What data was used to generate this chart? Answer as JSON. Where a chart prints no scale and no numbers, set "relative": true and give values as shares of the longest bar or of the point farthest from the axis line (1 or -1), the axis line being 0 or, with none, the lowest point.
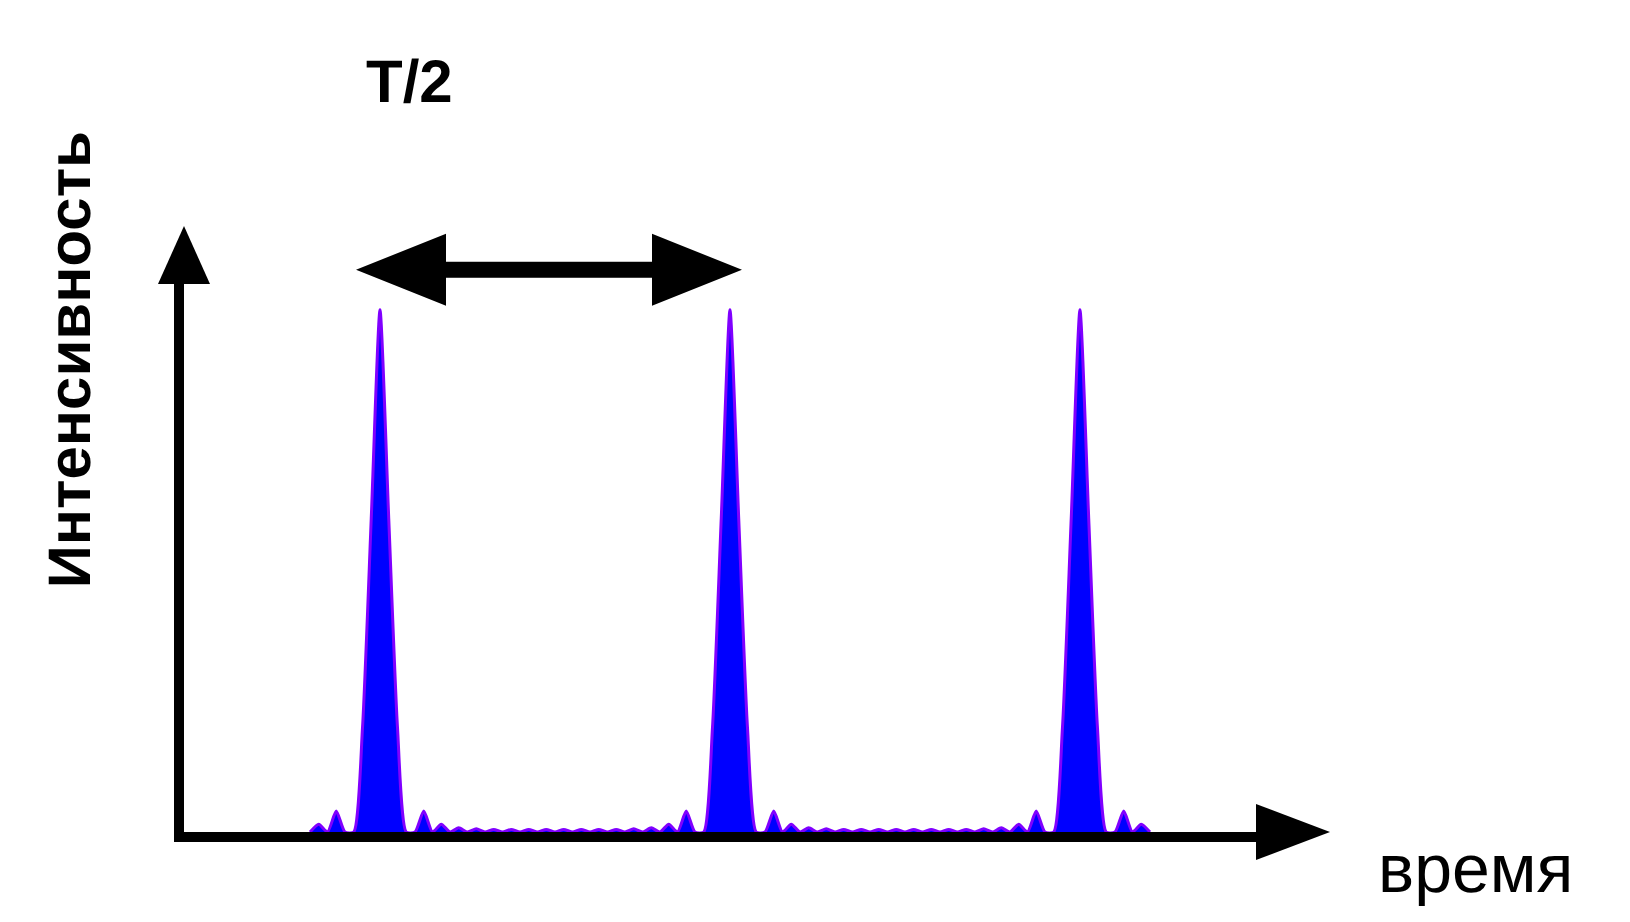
{
  "chart_data": {
    "type": "area",
    "xlabel": "время",
    "ylabel": "Интенсивность",
    "annotations": [
      "T/2"
    ],
    "categories": [
      null,
      null,
      null,
      null,
      null,
      null,
      null,
      null,
      null,
      null,
      null,
      null,
      null,
      null,
      null,
      null,
      null,
      null,
      null,
      null,
      null,
      null,
      null,
      null,
      null,
      null,
      null,
      null,
      null,
      null,
      null,
      null,
      null,
      null,
      null,
      null,
      null,
      null,
      null,
      null,
      null,
      null,
      null,
      null,
      null,
      null,
      null,
      null,
      null,
      null,
      null,
      null,
      null,
      null,
      null,
      null,
      null,
      null,
      null,
      null,
      null,
      null,
      null,
      null,
      null,
      null,
      null,
      null,
      null,
      null,
      null,
      null,
      null,
      null,
      null,
      null,
      null,
      null,
      null,
      null,
      null,
      null,
      null,
      null,
      null,
      null,
      null,
      null,
      null,
      null,
      null,
      null,
      null,
      null,
      null,
      null,
      null
    ],
    "series": [
      {
        "color": "#0000ff",
        "values": [
          0,
          0.015,
          0,
          0.04,
          0,
          0,
          0.2,
          0.6,
          1,
          0.6,
          0.2,
          0,
          0,
          0.04,
          0,
          0.015,
          0,
          0.008,
          0,
          0.006,
          0,
          0.005,
          0,
          0.005,
          0,
          0.005,
          0,
          0.005,
          0,
          0.005,
          0,
          0.005,
          0,
          0.005,
          0,
          0.005,
          0,
          0.006,
          0,
          0.008,
          0,
          0.015,
          0,
          0.04,
          0,
          0,
          0.2,
          0.6,
          1,
          0.6,
          0.2,
          0,
          0,
          0.04,
          0,
          0.015,
          0,
          0.008,
          0,
          0.006,
          0,
          0.005,
          0,
          0.005,
          0,
          0.005,
          0,
          0.005,
          0,
          0.005,
          0,
          0.005,
          0,
          0.005,
          0,
          0.005,
          0,
          0.006,
          0,
          0.008,
          0,
          0.015,
          0,
          0.04,
          0,
          0,
          0.2,
          0.6,
          1,
          0.6,
          0.2,
          0,
          0,
          0.04,
          0,
          0.015,
          0
        ]
      }
    ],
    "relative": true
  }
}
